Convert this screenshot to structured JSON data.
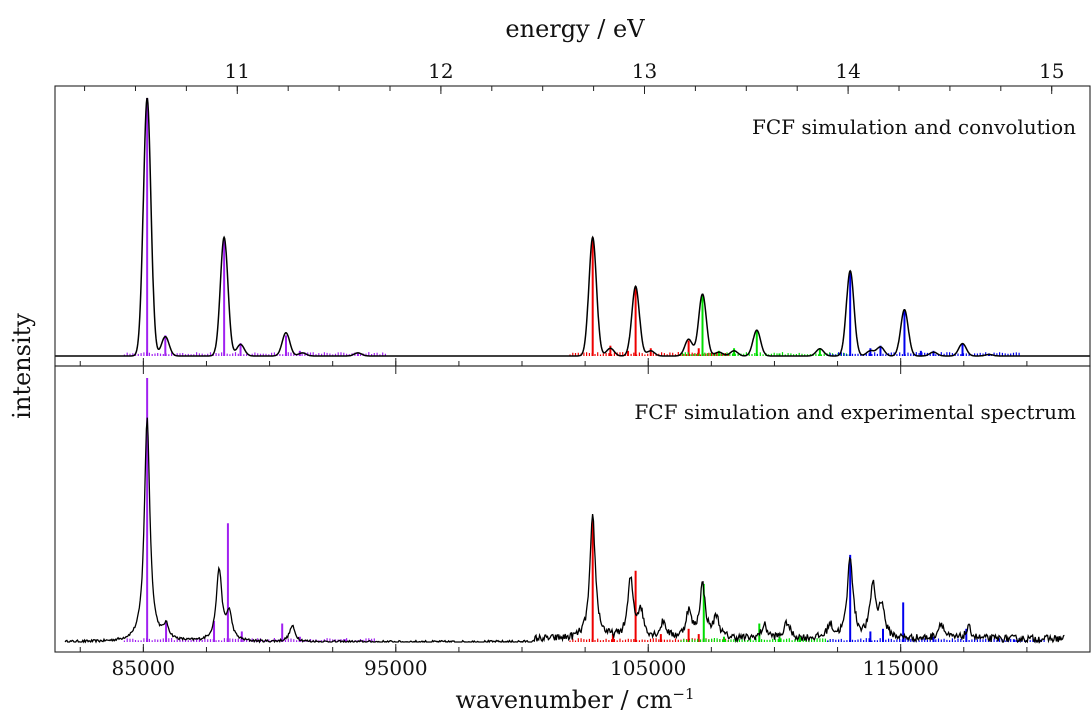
{
  "chart_data": {
    "type": "line",
    "x_label": "wavenumber / cm",
    "x_label_sup": "−1",
    "top_axis_label": "energy / eV",
    "y_label": "intensity",
    "x_range": [
      81500,
      122500
    ],
    "x_ticks": [
      85000,
      95000,
      105000,
      115000
    ],
    "top_ticks": [
      11,
      12,
      13,
      14,
      15
    ],
    "ev_to_cm": 8065.54,
    "grid": false,
    "colors": {
      "envelope": "#000000",
      "purple": "#a020f0",
      "red": "#ee0000",
      "green": "#00dd00",
      "blue": "#0000ee"
    },
    "panels": [
      {
        "annotation": "FCF simulation and convolution",
        "sticks": [
          {
            "color": "purple",
            "points": [
              [
                85150,
                1.0
              ],
              [
                85870,
                0.08
              ],
              [
                88200,
                0.45
              ],
              [
                88850,
                0.05
              ],
              [
                90650,
                0.08
              ],
              [
                91200,
                0.02
              ],
              [
                93500,
                0.01
              ]
            ]
          },
          {
            "color": "red",
            "points": [
              [
                102800,
                0.46
              ],
              [
                103500,
                0.04
              ],
              [
                104200,
                0.02
              ],
              [
                104500,
                0.27
              ],
              [
                105100,
                0.03
              ],
              [
                106600,
                0.06
              ],
              [
                107000,
                0.03
              ]
            ]
          },
          {
            "color": "green",
            "points": [
              [
                107150,
                0.24
              ],
              [
                107800,
                0.02
              ],
              [
                108400,
                0.03
              ],
              [
                109300,
                0.1
              ],
              [
                110200,
                0.01
              ],
              [
                111800,
                0.03
              ]
            ]
          },
          {
            "color": "blue",
            "points": [
              [
                113000,
                0.33
              ],
              [
                113800,
                0.03
              ],
              [
                114200,
                0.04
              ],
              [
                115150,
                0.18
              ],
              [
                115800,
                0.02
              ],
              [
                116300,
                0.02
              ],
              [
                117450,
                0.05
              ],
              [
                118500,
                0.01
              ]
            ]
          }
        ],
        "peaks": [
          [
            85150,
            1.0
          ],
          [
            85870,
            0.075
          ],
          [
            88200,
            0.46
          ],
          [
            88850,
            0.045
          ],
          [
            90650,
            0.09
          ],
          [
            91300,
            0.012
          ],
          [
            93500,
            0.012
          ],
          [
            102800,
            0.46
          ],
          [
            103500,
            0.03
          ],
          [
            104500,
            0.27
          ],
          [
            105100,
            0.02
          ],
          [
            106600,
            0.065
          ],
          [
            107150,
            0.24
          ],
          [
            107800,
            0.015
          ],
          [
            108400,
            0.02
          ],
          [
            109300,
            0.1
          ],
          [
            111800,
            0.028
          ],
          [
            113000,
            0.33
          ],
          [
            113800,
            0.02
          ],
          [
            114200,
            0.035
          ],
          [
            115150,
            0.18
          ],
          [
            116300,
            0.015
          ],
          [
            117450,
            0.048
          ],
          [
            118500,
            0.006
          ]
        ]
      },
      {
        "annotation": "FCF simulation and experimental spectrum",
        "sticks": [
          {
            "color": "purple",
            "points": [
              [
                85150,
                1.0
              ],
              [
                85900,
                0.08
              ],
              [
                87800,
                0.08
              ],
              [
                88350,
                0.45
              ],
              [
                88900,
                0.04
              ],
              [
                90500,
                0.07
              ],
              [
                91200,
                0.02
              ],
              [
                93000,
                0.01
              ]
            ]
          },
          {
            "color": "red",
            "points": [
              [
                102800,
                0.46
              ],
              [
                103600,
                0.03
              ],
              [
                104500,
                0.27
              ],
              [
                105500,
                0.03
              ],
              [
                106600,
                0.05
              ],
              [
                107000,
                0.03
              ]
            ]
          },
          {
            "color": "green",
            "points": [
              [
                107200,
                0.22
              ],
              [
                108000,
                0.02
              ],
              [
                109400,
                0.07
              ],
              [
                110200,
                0.02
              ],
              [
                111000,
                0.02
              ]
            ]
          },
          {
            "color": "blue",
            "points": [
              [
                113000,
                0.33
              ],
              [
                113800,
                0.04
              ],
              [
                114300,
                0.05
              ],
              [
                115100,
                0.15
              ],
              [
                116300,
                0.02
              ],
              [
                117600,
                0.05
              ],
              [
                119500,
                0.01
              ]
            ]
          }
        ],
        "experimental_peaks": [
          [
            85150,
            1.0
          ],
          [
            85900,
            0.06
          ],
          [
            88000,
            0.32
          ],
          [
            88400,
            0.12
          ],
          [
            90900,
            0.07
          ],
          [
            102800,
            0.46
          ],
          [
            104300,
            0.22
          ],
          [
            104700,
            0.1
          ],
          [
            105600,
            0.06
          ],
          [
            106600,
            0.1
          ],
          [
            107150,
            0.2
          ],
          [
            107700,
            0.08
          ],
          [
            109600,
            0.05
          ],
          [
            110500,
            0.06
          ],
          [
            112200,
            0.05
          ],
          [
            113000,
            0.31
          ],
          [
            113900,
            0.2
          ],
          [
            114250,
            0.12
          ],
          [
            116600,
            0.06
          ],
          [
            117700,
            0.04
          ]
        ]
      }
    ]
  }
}
